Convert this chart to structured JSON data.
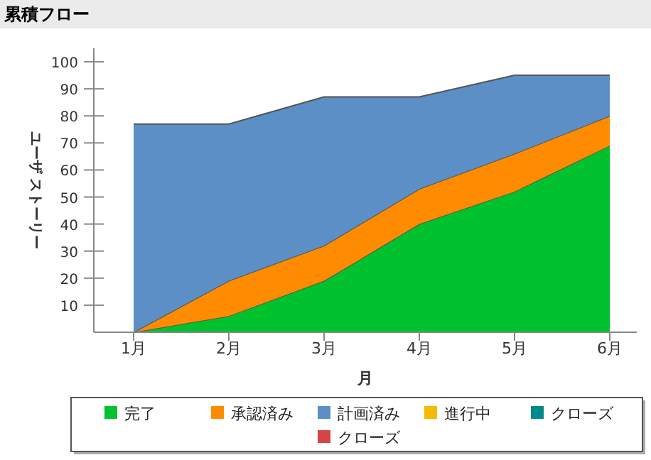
{
  "chart_data": {
    "type": "area",
    "title": "累積フロー",
    "xlabel": "月",
    "ylabel": "ユーザ ストーリー",
    "categories": [
      "1月",
      "2月",
      "3月",
      "4月",
      "5月",
      "6月"
    ],
    "stacked": true,
    "legend": "bottom",
    "ylim": [
      0,
      105
    ],
    "yticks": [
      10,
      20,
      30,
      40,
      50,
      60,
      70,
      80,
      90,
      100
    ],
    "series": [
      {
        "name": "完了",
        "color": "#00c22e",
        "values": [
          0,
          6,
          19,
          40,
          52,
          69
        ]
      },
      {
        "name": "承認済み",
        "color": "#ff8c00",
        "values": [
          0,
          13,
          13,
          13,
          14,
          11
        ]
      },
      {
        "name": "計画済み",
        "color": "#5b8fc5",
        "values": [
          77,
          58,
          55,
          34,
          29,
          15
        ]
      },
      {
        "name": "進行中",
        "color": "#f5bb00",
        "values": [
          null,
          null,
          null,
          null,
          null,
          null
        ]
      },
      {
        "name": "クローズ",
        "color": "#008b8b",
        "values": [
          null,
          null,
          null,
          null,
          null,
          null
        ]
      },
      {
        "name": "クローズ",
        "color": "#d64545",
        "values": [
          null,
          null,
          null,
          null,
          null,
          null
        ]
      }
    ]
  }
}
